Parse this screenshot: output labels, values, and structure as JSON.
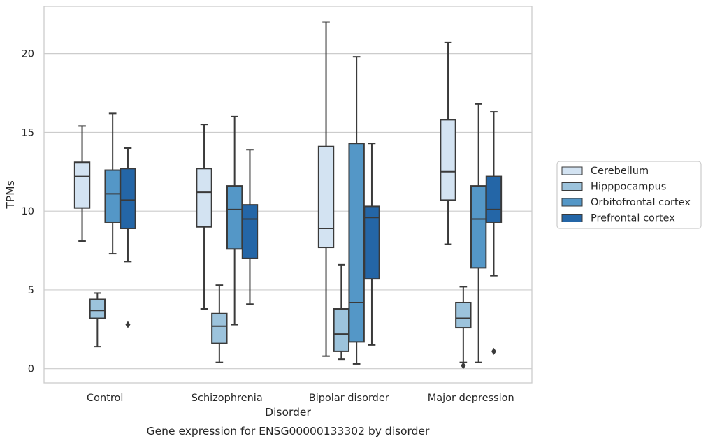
{
  "caption": "Gene expression for ENSG00000133302 by disorder",
  "chart_data": {
    "type": "boxplot",
    "title": "",
    "xlabel": "Disorder",
    "ylabel": "TPMs",
    "ylim": [
      -0.9,
      23.0
    ],
    "yticks": [
      0,
      5,
      10,
      15,
      20
    ],
    "grid": "horizontal",
    "legend_position": "right",
    "categories": [
      "Control",
      "Schizophrenia",
      "Bipolar disorder",
      "Major depression"
    ],
    "series": [
      {
        "name": "Cerebellum",
        "color": "#d3e3f2",
        "boxes": [
          {
            "whislo": 8.1,
            "q1": 10.2,
            "med": 12.2,
            "q3": 13.1,
            "whishi": 15.4,
            "fliers": []
          },
          {
            "whislo": 3.8,
            "q1": 9.0,
            "med": 11.2,
            "q3": 12.7,
            "whishi": 15.5,
            "fliers": []
          },
          {
            "whislo": 0.8,
            "q1": 7.7,
            "med": 8.9,
            "q3": 14.1,
            "whishi": 22.0,
            "fliers": []
          },
          {
            "whislo": 7.9,
            "q1": 10.7,
            "med": 12.5,
            "q3": 15.8,
            "whishi": 20.7,
            "fliers": []
          }
        ]
      },
      {
        "name": "Hipppocampus",
        "color": "#9cc3dc",
        "boxes": [
          {
            "whislo": 1.4,
            "q1": 3.2,
            "med": 3.7,
            "q3": 4.4,
            "whishi": 4.8,
            "fliers": []
          },
          {
            "whislo": 0.4,
            "q1": 1.6,
            "med": 2.7,
            "q3": 3.5,
            "whishi": 5.3,
            "fliers": []
          },
          {
            "whislo": 0.6,
            "q1": 1.1,
            "med": 2.2,
            "q3": 3.8,
            "whishi": 6.6,
            "fliers": []
          },
          {
            "whislo": 0.4,
            "q1": 2.6,
            "med": 3.2,
            "q3": 4.2,
            "whishi": 5.2,
            "fliers": [
              0.2
            ]
          }
        ]
      },
      {
        "name": "Orbitofrontal cortex",
        "color": "#5497c7",
        "boxes": [
          {
            "whislo": 7.3,
            "q1": 9.3,
            "med": 11.1,
            "q3": 12.6,
            "whishi": 16.2,
            "fliers": []
          },
          {
            "whislo": 2.8,
            "q1": 7.6,
            "med": 10.1,
            "q3": 11.6,
            "whishi": 16.0,
            "fliers": []
          },
          {
            "whislo": 0.3,
            "q1": 1.7,
            "med": 4.2,
            "q3": 14.3,
            "whishi": 19.8,
            "fliers": []
          },
          {
            "whislo": 0.4,
            "q1": 6.4,
            "med": 9.5,
            "q3": 11.6,
            "whishi": 16.8,
            "fliers": []
          }
        ]
      },
      {
        "name": "Prefrontal cortex",
        "color": "#2466a7",
        "boxes": [
          {
            "whislo": 6.8,
            "q1": 8.9,
            "med": 10.7,
            "q3": 12.7,
            "whishi": 14.0,
            "fliers": [
              2.8
            ]
          },
          {
            "whislo": 4.1,
            "q1": 7.0,
            "med": 9.5,
            "q3": 10.4,
            "whishi": 13.9,
            "fliers": []
          },
          {
            "whislo": 1.5,
            "q1": 5.7,
            "med": 9.6,
            "q3": 10.3,
            "whishi": 14.3,
            "fliers": []
          },
          {
            "whislo": 5.9,
            "q1": 9.3,
            "med": 10.1,
            "q3": 12.2,
            "whishi": 16.3,
            "fliers": [
              1.1
            ]
          }
        ]
      }
    ]
  }
}
